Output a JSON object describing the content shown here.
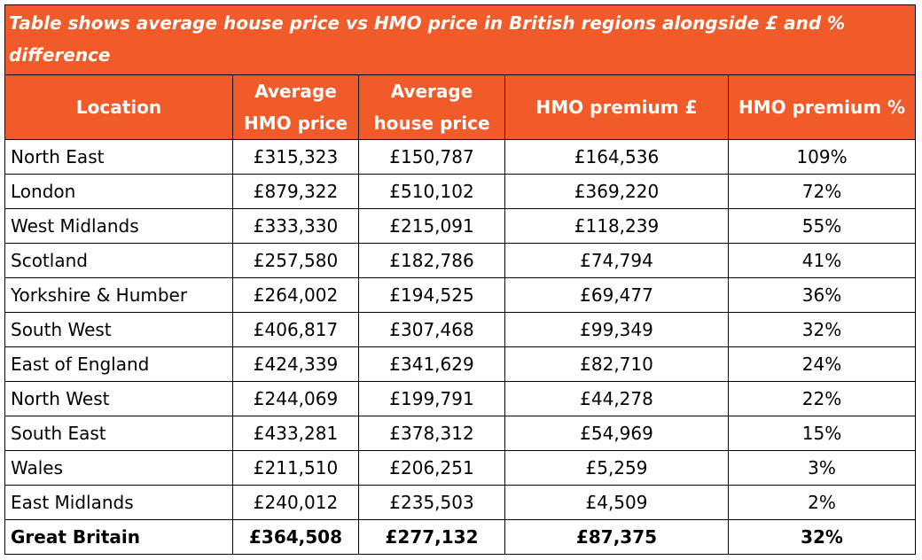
{
  "colors": {
    "header_bg": "#f15a29",
    "header_text": "#ffffff",
    "grid": "#000000"
  },
  "caption": "Table shows average house price vs HMO price in British regions alongside £ and % difference",
  "columns": [
    "Location",
    "Average HMO price",
    "Average house price",
    "HMO premium £",
    "HMO premium %"
  ],
  "rows": [
    [
      "North East",
      "£315,323",
      "£150,787",
      "£164,536",
      "109%"
    ],
    [
      "London",
      "£879,322",
      "£510,102",
      "£369,220",
      "72%"
    ],
    [
      "West Midlands",
      "£333,330",
      "£215,091",
      "£118,239",
      "55%"
    ],
    [
      "Scotland",
      "£257,580",
      "£182,786",
      "£74,794",
      "41%"
    ],
    [
      "Yorkshire & Humber",
      "£264,002",
      "£194,525",
      "£69,477",
      "36%"
    ],
    [
      "South West",
      "£406,817",
      "£307,468",
      "£99,349",
      "32%"
    ],
    [
      "East of England",
      "£424,339",
      "£341,629",
      "£82,710",
      "24%"
    ],
    [
      "North West",
      "£244,069",
      "£199,791",
      "£44,278",
      "22%"
    ],
    [
      "South East",
      "£433,281",
      "£378,312",
      "£54,969",
      "15%"
    ],
    [
      "Wales",
      "£211,510",
      "£206,251",
      "£5,259",
      "3%"
    ],
    [
      "East Midlands",
      "£240,012",
      "£235,503",
      "£4,509",
      "2%"
    ]
  ],
  "total": [
    "Great Britain",
    "£364,508",
    "£277,132",
    "£87,375",
    "32%"
  ]
}
